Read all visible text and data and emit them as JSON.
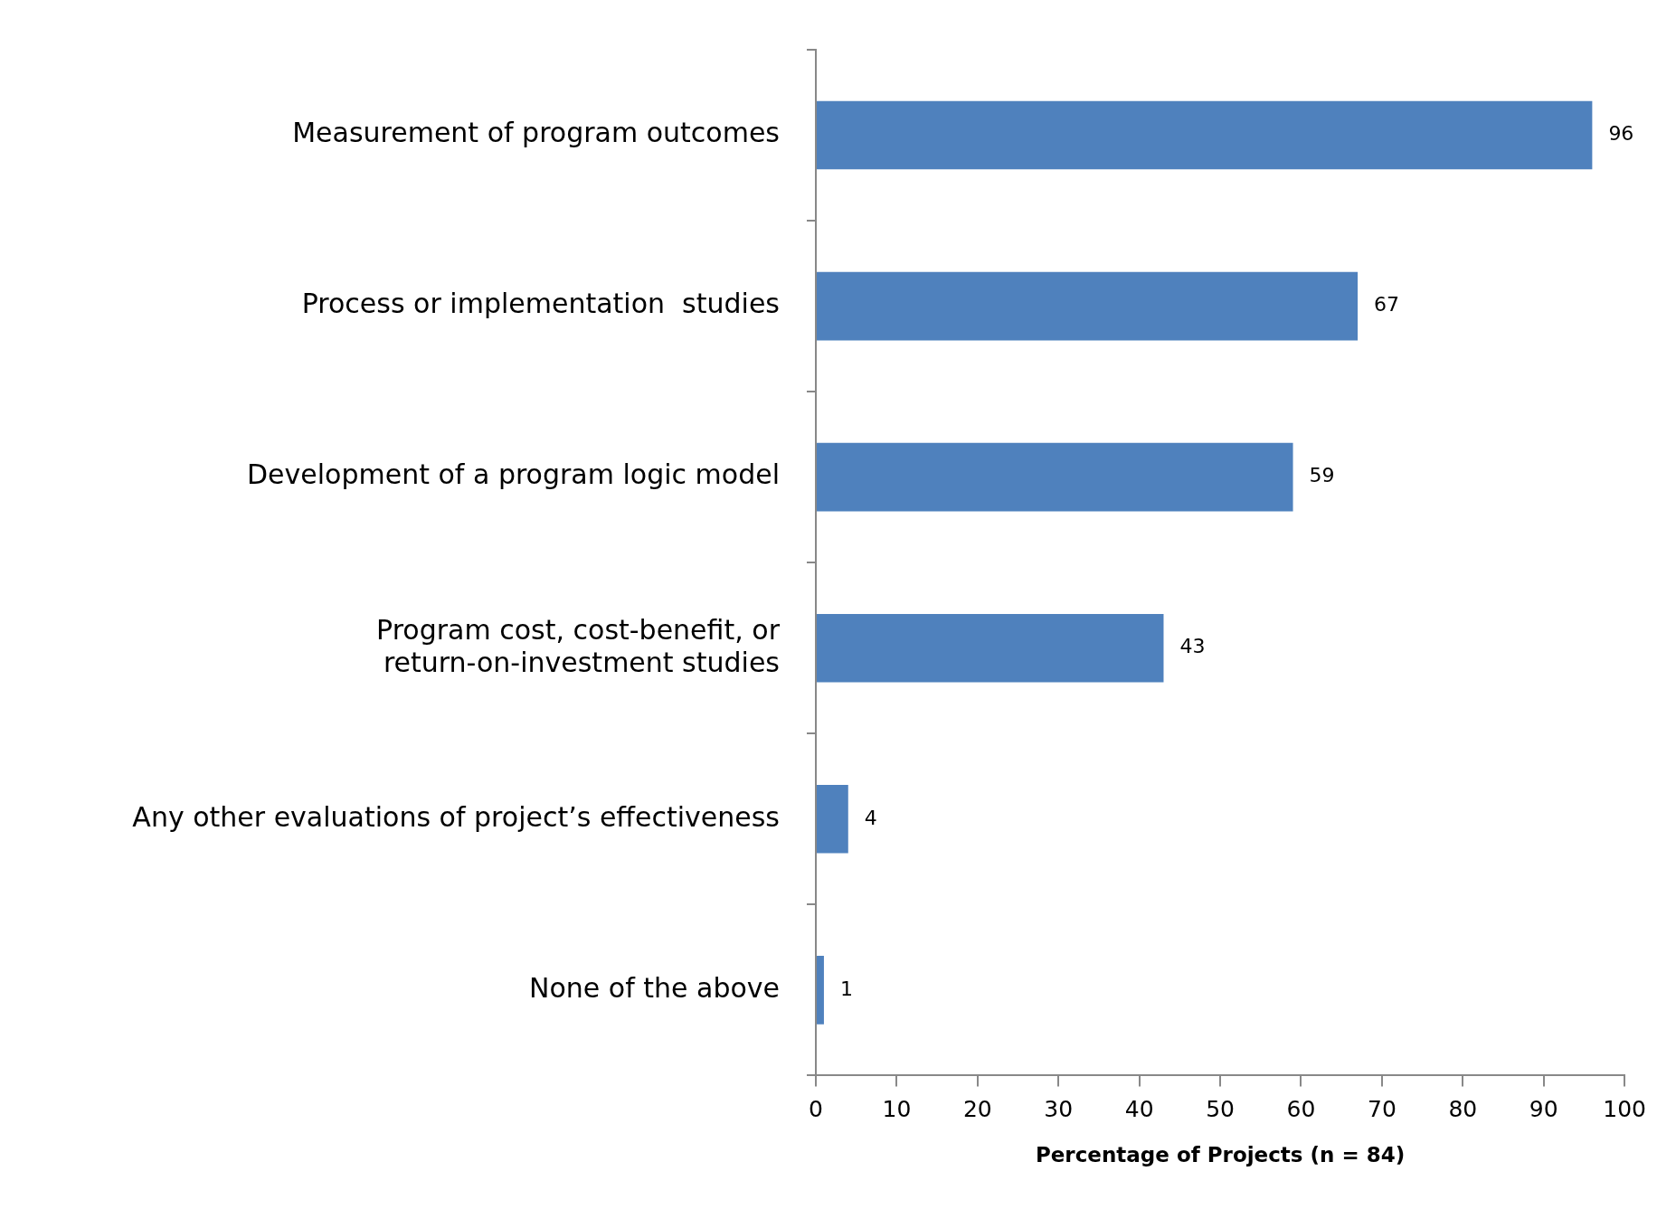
{
  "chart_data": {
    "type": "bar",
    "orientation": "horizontal",
    "xlabel": "Percentage of Projects (n = 84)",
    "categories": [
      "Measurement of program outcomes",
      "Process or implementation  studies",
      "Development of a program logic model",
      "Program cost, cost-benefit, or return-on-investment studies",
      "Any other evaluations of project’s effectiveness",
      "None of the above"
    ],
    "values": [
      96,
      67,
      59,
      43,
      4,
      1
    ],
    "color": "#4f81bd",
    "xlim": [
      0,
      100
    ],
    "xticks": [
      0,
      10,
      20,
      30,
      40,
      50,
      60,
      70,
      80,
      90,
      100
    ],
    "data_labels": true,
    "grid": false,
    "legend": false
  }
}
